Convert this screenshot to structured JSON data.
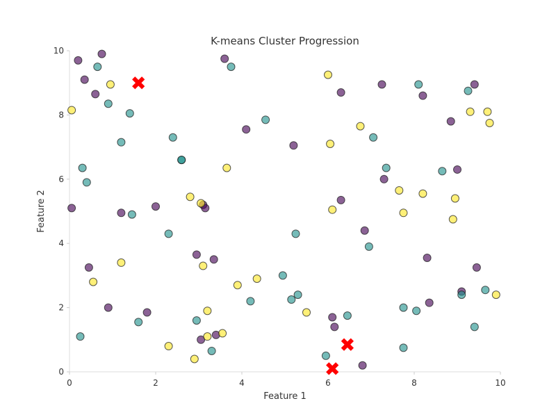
{
  "chart_data": {
    "type": "scatter",
    "title": "K-means Cluster Progression",
    "xlabel": "Feature 1",
    "ylabel": "Feature 2",
    "xlim": [
      0,
      10
    ],
    "ylim": [
      0,
      10
    ],
    "x_ticks": [
      "0",
      "2",
      "4",
      "6",
      "8",
      "10"
    ],
    "y_ticks": [
      "0",
      "2",
      "4",
      "6",
      "8",
      "10"
    ],
    "grid": false,
    "legend": "none",
    "colors": {
      "cluster_0": "#440154",
      "cluster_1": "#21918c",
      "cluster_2": "#fde725",
      "centroid": "#ff0000"
    },
    "series": [
      {
        "cluster": 0,
        "points": [
          [
            0.2,
            9.7
          ],
          [
            0.75,
            9.9
          ],
          [
            0.35,
            9.1
          ],
          [
            0.6,
            8.65
          ],
          [
            3.6,
            9.75
          ],
          [
            7.25,
            8.95
          ],
          [
            9.4,
            8.95
          ],
          [
            6.3,
            8.7
          ],
          [
            8.2,
            8.6
          ],
          [
            4.1,
            7.55
          ],
          [
            5.2,
            7.05
          ],
          [
            8.85,
            7.8
          ],
          [
            9.0,
            6.3
          ],
          [
            7.3,
            6.0
          ],
          [
            6.3,
            5.35
          ],
          [
            0.05,
            5.1
          ],
          [
            1.2,
            4.95
          ],
          [
            2.0,
            5.15
          ],
          [
            3.1,
            5.2
          ],
          [
            3.15,
            5.1
          ],
          [
            6.85,
            4.4
          ],
          [
            2.95,
            3.65
          ],
          [
            3.35,
            3.5
          ],
          [
            8.3,
            3.55
          ],
          [
            0.45,
            3.25
          ],
          [
            9.45,
            3.25
          ],
          [
            9.1,
            2.5
          ],
          [
            8.35,
            2.15
          ],
          [
            0.9,
            2.0
          ],
          [
            1.8,
            1.85
          ],
          [
            6.1,
            1.7
          ],
          [
            6.15,
            1.4
          ],
          [
            3.05,
            1.0
          ],
          [
            3.4,
            1.15
          ],
          [
            6.8,
            0.2
          ]
        ]
      },
      {
        "cluster": 1,
        "points": [
          [
            0.65,
            9.5
          ],
          [
            3.75,
            9.5
          ],
          [
            8.1,
            8.95
          ],
          [
            9.25,
            8.75
          ],
          [
            0.9,
            8.35
          ],
          [
            1.4,
            8.05
          ],
          [
            4.55,
            7.85
          ],
          [
            2.4,
            7.3
          ],
          [
            7.05,
            7.3
          ],
          [
            1.2,
            7.15
          ],
          [
            2.6,
            6.6
          ],
          [
            2.6,
            6.6
          ],
          [
            0.3,
            6.35
          ],
          [
            7.35,
            6.35
          ],
          [
            8.65,
            6.25
          ],
          [
            0.4,
            5.9
          ],
          [
            1.45,
            4.9
          ],
          [
            2.3,
            4.3
          ],
          [
            5.25,
            4.3
          ],
          [
            6.95,
            3.9
          ],
          [
            4.95,
            3.0
          ],
          [
            5.3,
            2.4
          ],
          [
            4.2,
            2.2
          ],
          [
            5.15,
            2.25
          ],
          [
            9.1,
            2.4
          ],
          [
            9.65,
            2.55
          ],
          [
            7.75,
            2.0
          ],
          [
            8.05,
            1.9
          ],
          [
            6.45,
            1.75
          ],
          [
            1.6,
            1.55
          ],
          [
            2.95,
            1.6
          ],
          [
            9.4,
            1.4
          ],
          [
            0.25,
            1.1
          ],
          [
            3.3,
            0.65
          ],
          [
            7.75,
            0.75
          ],
          [
            5.95,
            0.5
          ]
        ]
      },
      {
        "cluster": 2,
        "points": [
          [
            6.0,
            9.25
          ],
          [
            0.95,
            8.95
          ],
          [
            0.05,
            8.15
          ],
          [
            9.3,
            8.1
          ],
          [
            9.7,
            8.1
          ],
          [
            9.75,
            7.75
          ],
          [
            6.75,
            7.65
          ],
          [
            6.05,
            7.1
          ],
          [
            3.65,
            6.35
          ],
          [
            7.65,
            5.65
          ],
          [
            8.2,
            5.55
          ],
          [
            2.8,
            5.45
          ],
          [
            8.95,
            5.4
          ],
          [
            3.05,
            5.25
          ],
          [
            6.1,
            5.05
          ],
          [
            7.75,
            4.95
          ],
          [
            8.9,
            4.75
          ],
          [
            1.2,
            3.4
          ],
          [
            3.1,
            3.3
          ],
          [
            0.55,
            2.8
          ],
          [
            4.35,
            2.9
          ],
          [
            3.9,
            2.7
          ],
          [
            9.9,
            2.4
          ],
          [
            3.2,
            1.9
          ],
          [
            5.5,
            1.85
          ],
          [
            3.2,
            1.1
          ],
          [
            3.55,
            1.2
          ],
          [
            2.3,
            0.8
          ],
          [
            2.9,
            0.4
          ]
        ]
      }
    ],
    "centroids": [
      [
        1.6,
        9.0
      ],
      [
        6.45,
        0.85
      ],
      [
        6.1,
        0.1
      ]
    ]
  }
}
